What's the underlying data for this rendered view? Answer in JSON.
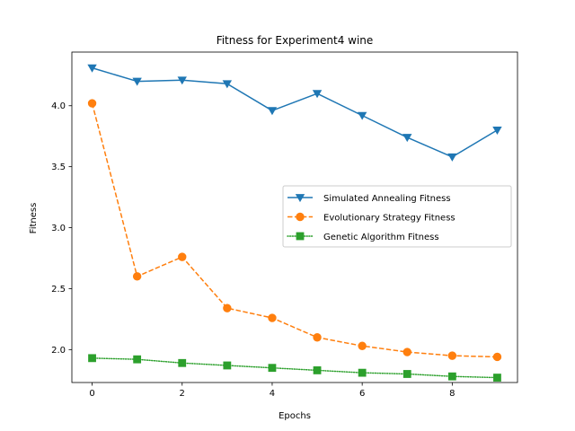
{
  "chart_data": {
    "type": "line",
    "title": "Fitness for Experiment4 wine",
    "xlabel": "Epochs",
    "ylabel": "Fitness",
    "x": [
      0,
      1,
      2,
      3,
      4,
      5,
      6,
      7,
      8,
      9
    ],
    "xlim": [
      -0.45,
      9.45
    ],
    "ylim": [
      1.73,
      4.44
    ],
    "xticks": [
      "0",
      "2",
      "4",
      "6",
      "8"
    ],
    "yticks": [
      "2.0",
      "2.5",
      "3.0",
      "3.5",
      "4.0"
    ],
    "grid": false,
    "legend_position": "center-right",
    "series": [
      {
        "name": "Simulated Annealing Fitness",
        "color": "#1f77b4",
        "linestyle": "solid",
        "marker": "triangle-down",
        "values": [
          4.31,
          4.2,
          4.21,
          4.18,
          3.96,
          4.1,
          3.92,
          3.74,
          3.58,
          3.8
        ]
      },
      {
        "name": "Evolutionary Strategy Fitness",
        "color": "#ff7f0e",
        "linestyle": "dashed",
        "marker": "circle",
        "values": [
          4.02,
          2.6,
          2.76,
          2.34,
          2.26,
          2.1,
          2.03,
          1.98,
          1.95,
          1.94
        ]
      },
      {
        "name": "Genetic Algorithm Fitness",
        "color": "#2ca02c",
        "linestyle": "dotted",
        "marker": "square",
        "values": [
          1.93,
          1.92,
          1.89,
          1.87,
          1.85,
          1.83,
          1.81,
          1.8,
          1.78,
          1.77
        ]
      }
    ]
  }
}
